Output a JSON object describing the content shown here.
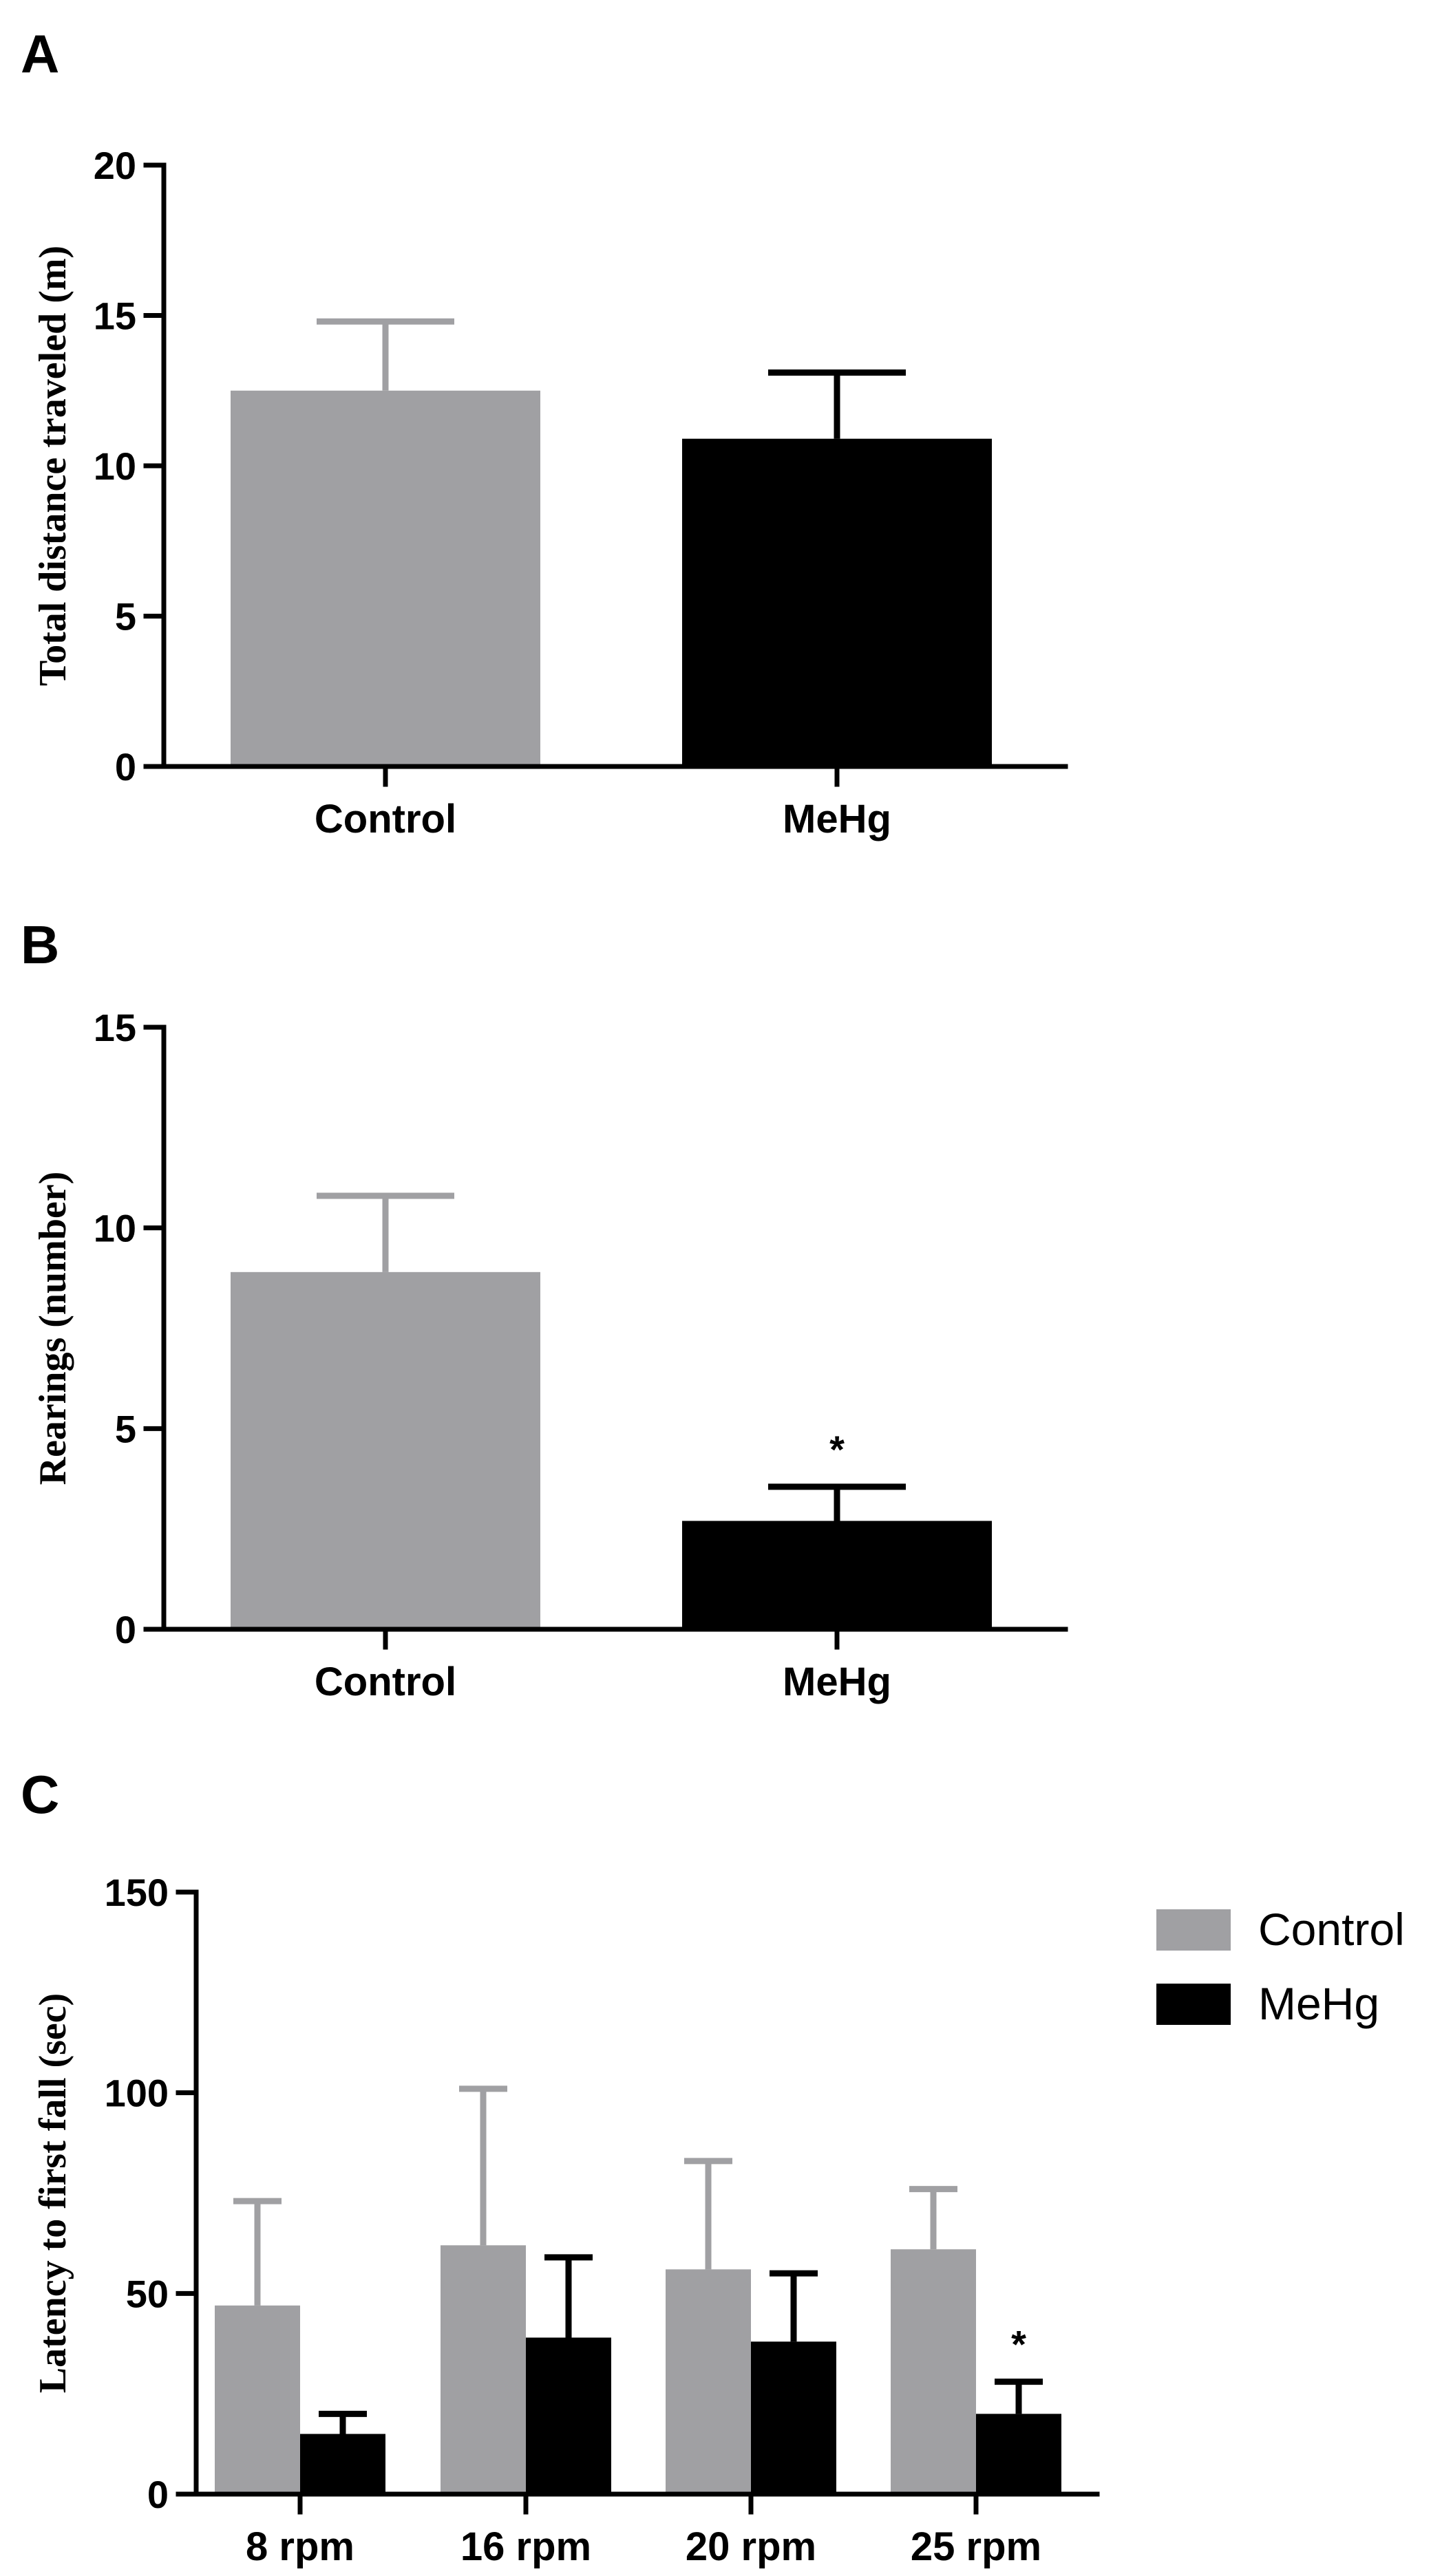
{
  "chart_data": [
    {
      "panel": "A",
      "type": "bar",
      "categories": [
        "Control",
        "MeHg"
      ],
      "values": [
        12.5,
        10.9
      ],
      "errors": [
        2.3,
        2.2
      ],
      "colors": [
        "#a0a0a3",
        "#000000"
      ],
      "significance": [
        "",
        ""
      ],
      "ylabel": "Total distance traveled (m)",
      "xlabel": "",
      "ylim": [
        0,
        20
      ],
      "yticks": [
        "0",
        "5",
        "10",
        "15",
        "20"
      ]
    },
    {
      "panel": "B",
      "type": "bar",
      "categories": [
        "Control",
        "MeHg"
      ],
      "values": [
        8.9,
        2.7
      ],
      "errors": [
        1.9,
        0.85
      ],
      "colors": [
        "#a0a0a3",
        "#000000"
      ],
      "significance": [
        "",
        "*"
      ],
      "ylabel": "Rearings (number)",
      "xlabel": "",
      "ylim": [
        0,
        15
      ],
      "yticks": [
        "0",
        "5",
        "10",
        "15"
      ]
    },
    {
      "panel": "C",
      "type": "bar",
      "categories": [
        "8 rpm",
        "16 rpm",
        "20 rpm",
        "25 rpm"
      ],
      "series": [
        {
          "name": "Control",
          "color": "#a0a0a3",
          "values": [
            47,
            62,
            56,
            61
          ],
          "errors": [
            26,
            39,
            27,
            15
          ],
          "significance": [
            "",
            "",
            "",
            ""
          ]
        },
        {
          "name": "MeHg",
          "color": "#000000",
          "values": [
            15,
            39,
            38,
            20
          ],
          "errors": [
            5,
            20,
            17,
            8
          ],
          "significance": [
            "",
            "",
            "",
            "*"
          ]
        }
      ],
      "ylabel": "Latency to first fall (sec)",
      "xlabel": "",
      "ylim": [
        0,
        150
      ],
      "yticks": [
        "0",
        "50",
        "100",
        "150"
      ],
      "legend": "top-right"
    }
  ]
}
